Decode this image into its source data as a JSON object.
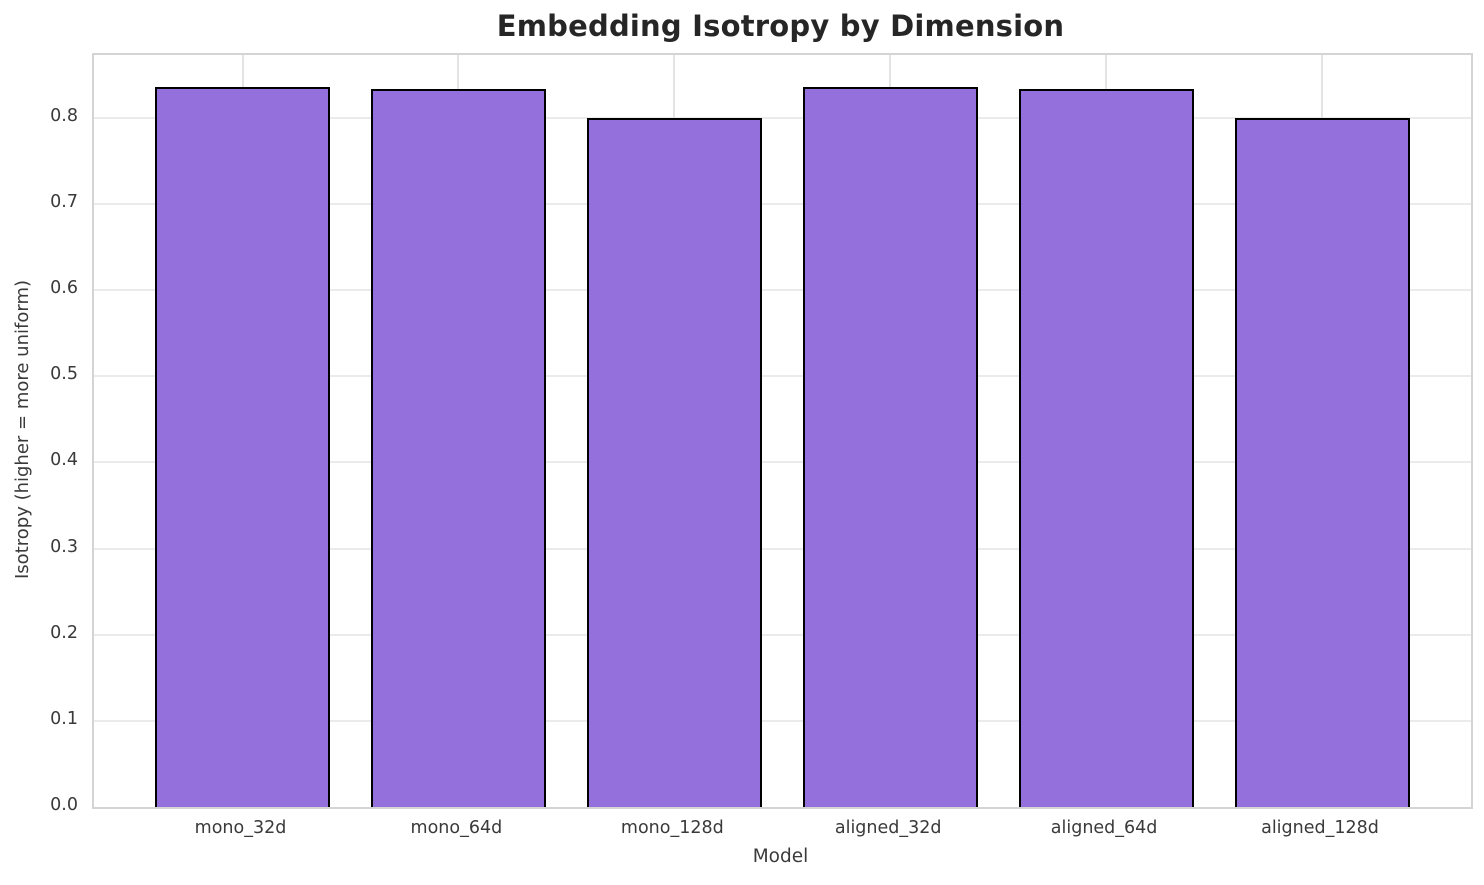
{
  "chart_data": {
    "type": "bar",
    "title": "Embedding Isotropy by Dimension",
    "xlabel": "Model",
    "ylabel": "Isotropy (higher = more uniform)",
    "categories": [
      "mono_32d",
      "mono_64d",
      "mono_128d",
      "aligned_32d",
      "aligned_64d",
      "aligned_128d"
    ],
    "values": [
      0.836,
      0.833,
      0.8,
      0.836,
      0.833,
      0.8
    ],
    "yticks": [
      0.0,
      0.1,
      0.2,
      0.3,
      0.4,
      0.5,
      0.6,
      0.7,
      0.8
    ],
    "ylim": [
      0,
      0.873
    ],
    "grid": true,
    "legend_position": "none",
    "bar_color": "#9370DB",
    "bar_edge_color": "#000000",
    "grid_color": "#ebebeb",
    "background_color": "#ffffff",
    "title_color": "#262626",
    "tick_label_color": "#3a3a3a"
  }
}
